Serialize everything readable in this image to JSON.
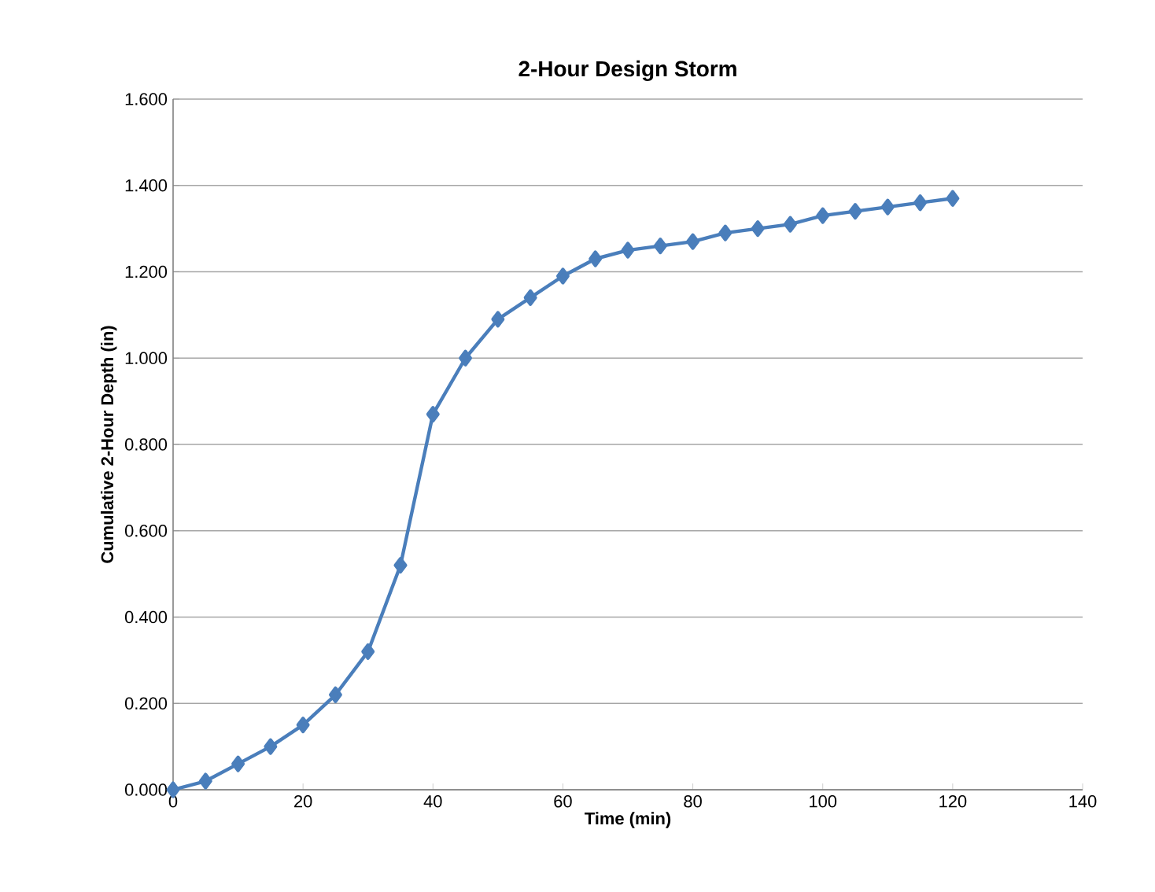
{
  "chart_data": {
    "type": "line",
    "title": "2-Hour Design Storm",
    "xlabel": "Time (min)",
    "ylabel": "Cumulative  2-Hour Depth (in)",
    "x": [
      0,
      5,
      10,
      15,
      20,
      25,
      30,
      35,
      40,
      45,
      50,
      55,
      60,
      65,
      70,
      75,
      80,
      85,
      90,
      95,
      100,
      105,
      110,
      115,
      120
    ],
    "series": [
      {
        "color": "#4a7ebb",
        "values": [
          0.0,
          0.02,
          0.06,
          0.1,
          0.15,
          0.22,
          0.32,
          0.52,
          0.87,
          1.0,
          1.09,
          1.14,
          1.19,
          1.23,
          1.25,
          1.26,
          1.27,
          1.29,
          1.3,
          1.31,
          1.33,
          1.34,
          1.35,
          1.36,
          1.37
        ]
      }
    ],
    "xlim": [
      0,
      140
    ],
    "xticks": [
      0,
      20,
      40,
      60,
      80,
      100,
      120,
      140
    ],
    "ylim": [
      0,
      1.6
    ],
    "yticks": [
      {
        "value": 0,
        "label": "0.000"
      },
      {
        "value": 0.2,
        "label": "0.200"
      },
      {
        "value": 0.4,
        "label": "0.400"
      },
      {
        "value": 0.6,
        "label": "0.600"
      },
      {
        "value": 0.8,
        "label": "0.800"
      },
      {
        "value": 1.0,
        "label": "1.000"
      },
      {
        "value": 1.2,
        "label": "1.200"
      },
      {
        "value": 1.4,
        "label": "1.400"
      },
      {
        "value": 1.6,
        "label": "1.600"
      }
    ],
    "grid": "y",
    "marker": "diamond",
    "line_style": "solid"
  }
}
